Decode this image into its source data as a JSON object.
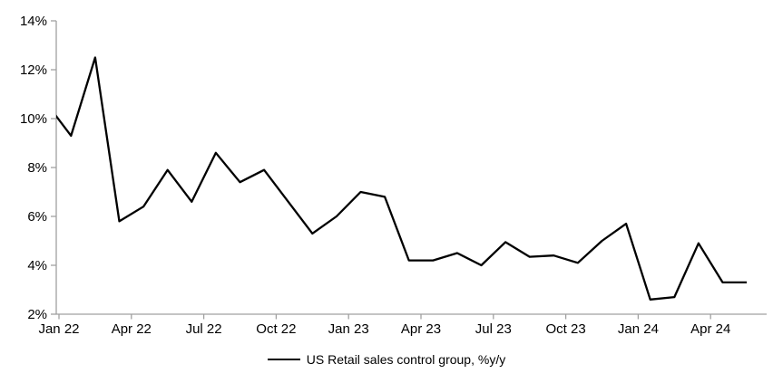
{
  "chart_data": {
    "type": "line",
    "title": "",
    "xlabel": "",
    "ylabel": "",
    "x": [
      "Dec 21",
      "Jan 22",
      "Feb 22",
      "Mar 22",
      "Apr 22",
      "May 22",
      "Jun 22",
      "Jul 22",
      "Aug 22",
      "Sep 22",
      "Oct 22",
      "Nov 22",
      "Dec 22",
      "Jan 23",
      "Feb 23",
      "Mar 23",
      "Apr 23",
      "May 23",
      "Jun 23",
      "Jul 23",
      "Aug 23",
      "Sep 23",
      "Oct 23",
      "Nov 23",
      "Dec 23",
      "Jan 24",
      "Feb 24",
      "Mar 24",
      "Apr 24",
      "May 24"
    ],
    "series": [
      {
        "name": "US Retail sales control group, %y/y",
        "values": [
          10.6,
          9.3,
          12.5,
          5.8,
          6.4,
          7.9,
          6.6,
          8.6,
          7.4,
          7.9,
          6.6,
          5.3,
          6.0,
          7.0,
          6.8,
          4.2,
          4.2,
          4.5,
          4.0,
          4.95,
          4.35,
          4.4,
          4.1,
          5.0,
          5.7,
          2.6,
          2.7,
          4.9,
          3.3,
          3.3
        ]
      }
    ],
    "first_point_clipped_at_left_axis": true,
    "ylim": [
      2,
      14
    ],
    "ytick_step": 2,
    "ytick_labels": [
      "2%",
      "4%",
      "6%",
      "8%",
      "10%",
      "12%",
      "14%"
    ],
    "xtick_labels": [
      "Jan 22",
      "Apr 22",
      "Jul 22",
      "Oct 22",
      "Jan 23",
      "Apr 23",
      "Jul 23",
      "Oct 23",
      "Jan 24",
      "Apr 24"
    ],
    "grid": false,
    "legend_position": "bottom-center",
    "line_color": "#000000",
    "axis_color": "#a0a0a0",
    "label_color": "#000000"
  }
}
